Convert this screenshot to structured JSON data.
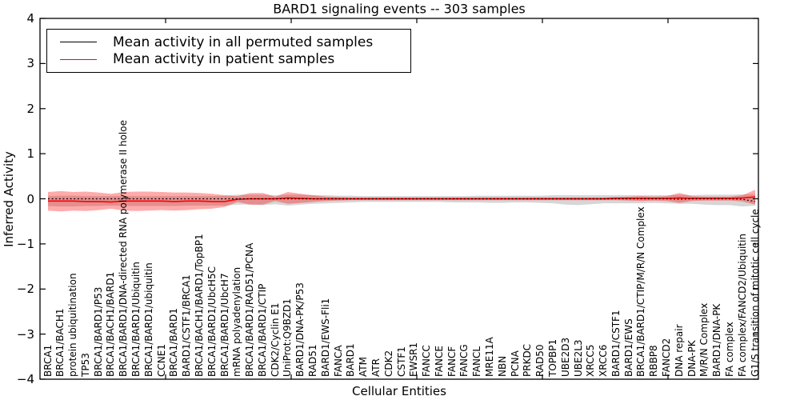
{
  "figure": {
    "background": "#ffffff",
    "frame_color": "#000000"
  },
  "chart_data": {
    "type": "line",
    "title": "BARD1 signaling events -- 303 samples",
    "xlabel": "Cellular Entities",
    "ylabel": "Inferred Activity",
    "ylim": [
      -4,
      4
    ],
    "grid": false,
    "legend_position": "upper left",
    "y_tick_labels": [
      "4",
      "3",
      "2",
      "1",
      "0",
      "−1",
      "−2",
      "−3",
      "−4"
    ],
    "y_tick_values": [
      4,
      3,
      2,
      1,
      0,
      -1,
      -2,
      -3,
      -4
    ],
    "categories": [
      "BRCA1",
      "BRCA1/BACH1",
      "protein ubiquitination",
      "TP53",
      "BRCA1/BARD1/P53",
      "BRCA1/BACH1/BARD1",
      "BRCA1/BARD1/DNA-directed RNA polymerase II holoe",
      "BRCA1/BARD1/Ubiquitin",
      "BRCA1/BARD1/ubiquitin",
      "CCNE1",
      "BRCA1/BARD1",
      "BARD1/CSTF1/BRCA1",
      "BRCA1/BACH1/BARD1/TopBP1",
      "BRCA1/BARD1/UbcH5C",
      "BRCA1/BARD1/UbcH7",
      "mRNA polyadenylation",
      "BRCA1/BARD1/RAD51/PCNA",
      "BRCA1/BARD1/CTIP",
      "CDK2/Cyclin E1",
      "UniProt:Q9BZD1",
      "BARD1/DNA-PK/P53",
      "RAD51",
      "BARD1/EWS-Fli1",
      "FANCA",
      "BARD1",
      "ATM",
      "ATR",
      "CDK2",
      "CSTF1",
      "EWSR1",
      "FANCC",
      "FANCE",
      "FANCF",
      "FANCG",
      "FANCL",
      "MRE11A",
      "NBN",
      "PCNA",
      "PRKDC",
      "RAD50",
      "TOPBP1",
      "UBE2D3",
      "UBE2L3",
      "XRCC5",
      "XRCC6",
      "BARD1/CSTF1",
      "BARD1/EWS",
      "BRCA1/BARD1/CTIP/M/R/N Complex",
      "RBBP8",
      "FANCD2",
      "DNA repair",
      "DNA-PK",
      "M/R/N Complex",
      "BARD1/DNA-PK",
      "FA complex",
      "FA complex/FANCD2/Ubiquitin",
      "G1/S transition of mitotic cell cycle"
    ],
    "series": [
      {
        "name": "Mean activity in all permuted samples",
        "color": "#000000",
        "line_style": "dotted",
        "values": [
          0,
          0,
          0,
          0,
          0,
          0,
          0,
          0,
          0,
          0,
          0,
          0,
          0,
          0,
          0,
          0,
          0,
          0,
          0,
          0,
          0,
          0,
          0,
          0,
          0,
          0,
          0,
          0,
          0,
          0,
          0,
          0,
          0,
          0,
          0,
          0,
          0,
          0,
          0,
          0,
          0,
          0,
          0,
          0,
          0,
          0,
          0,
          0,
          0,
          0,
          -0.01,
          0,
          0,
          0,
          0,
          -0.01,
          -0.06
        ],
        "band": {
          "color": "#7f7f7f",
          "opacity": 0.32,
          "lo": [
            -0.16,
            -0.17,
            -0.17,
            -0.16,
            -0.16,
            -0.15,
            -0.16,
            -0.16,
            -0.16,
            -0.16,
            -0.16,
            -0.15,
            -0.15,
            -0.15,
            -0.15,
            -0.13,
            -0.13,
            -0.14,
            -0.12,
            -0.15,
            -0.13,
            -0.11,
            -0.1,
            -0.09,
            -0.08,
            -0.07,
            -0.07,
            -0.07,
            -0.07,
            -0.07,
            -0.07,
            -0.07,
            -0.08,
            -0.08,
            -0.08,
            -0.09,
            -0.09,
            -0.08,
            -0.08,
            -0.09,
            -0.1,
            -0.13,
            -0.14,
            -0.12,
            -0.1,
            -0.1,
            -0.1,
            -0.1,
            -0.09,
            -0.1,
            -0.11,
            -0.11,
            -0.13,
            -0.14,
            -0.14,
            -0.17,
            -0.15
          ],
          "hi": [
            0.06,
            0.07,
            0.07,
            0.06,
            0.06,
            0.06,
            0.06,
            0.06,
            0.06,
            0.06,
            0.06,
            0.06,
            0.06,
            0.06,
            0.07,
            0.09,
            0.09,
            0.09,
            0.08,
            0.09,
            0.09,
            0.08,
            0.08,
            0.07,
            0.07,
            0.06,
            0.06,
            0.06,
            0.06,
            0.06,
            0.06,
            0.06,
            0.06,
            0.06,
            0.07,
            0.07,
            0.07,
            0.07,
            0.07,
            0.07,
            0.08,
            0.08,
            0.08,
            0.08,
            0.08,
            0.08,
            0.08,
            0.08,
            0.08,
            0.08,
            0.09,
            0.08,
            0.09,
            0.09,
            0.09,
            0.1,
            0.1
          ]
        }
      },
      {
        "name": "Mean activity in patient samples",
        "color": "#ff0000",
        "line_style": "solid",
        "values": [
          -0.05,
          -0.05,
          -0.05,
          -0.06,
          -0.06,
          -0.07,
          -0.05,
          -0.05,
          -0.05,
          -0.05,
          -0.06,
          -0.05,
          -0.05,
          -0.06,
          -0.06,
          -0.01,
          0,
          0,
          0,
          0.02,
          0.01,
          0,
          0,
          0,
          0,
          0,
          0,
          0,
          0,
          0,
          0,
          0,
          0,
          0,
          0,
          0,
          0,
          0,
          0,
          0,
          0,
          0,
          0,
          0,
          0,
          0.01,
          0.01,
          0.01,
          0.01,
          0.01,
          0.02,
          0.01,
          0.01,
          0.01,
          0.01,
          0.02,
          0.04
        ],
        "band": {
          "color": "#ff0000",
          "opacity": 0.33,
          "lo": [
            -0.26,
            -0.28,
            -0.26,
            -0.27,
            -0.25,
            -0.22,
            -0.26,
            -0.27,
            -0.26,
            -0.25,
            -0.26,
            -0.25,
            -0.23,
            -0.22,
            -0.18,
            -0.07,
            -0.13,
            -0.13,
            -0.05,
            -0.11,
            -0.09,
            -0.07,
            -0.05,
            -0.04,
            -0.03,
            -0.03,
            -0.03,
            -0.03,
            -0.03,
            -0.03,
            -0.03,
            -0.03,
            -0.03,
            -0.03,
            -0.03,
            -0.03,
            -0.03,
            -0.03,
            -0.03,
            -0.03,
            -0.03,
            -0.03,
            -0.03,
            -0.03,
            -0.03,
            -0.03,
            -0.04,
            -0.05,
            -0.04,
            -0.05,
            -0.09,
            -0.05,
            -0.04,
            -0.04,
            -0.04,
            -0.06,
            -0.13
          ],
          "hi": [
            0.15,
            0.17,
            0.15,
            0.16,
            0.14,
            0.11,
            0.15,
            0.16,
            0.16,
            0.15,
            0.14,
            0.14,
            0.13,
            0.11,
            0.08,
            0.06,
            0.13,
            0.13,
            0.05,
            0.15,
            0.11,
            0.08,
            0.05,
            0.04,
            0.03,
            0.03,
            0.03,
            0.03,
            0.03,
            0.03,
            0.03,
            0.03,
            0.03,
            0.03,
            0.03,
            0.03,
            0.03,
            0.03,
            0.03,
            0.03,
            0.03,
            0.03,
            0.03,
            0.03,
            0.03,
            0.04,
            0.05,
            0.06,
            0.05,
            0.06,
            0.13,
            0.06,
            0.05,
            0.05,
            0.05,
            0.08,
            0.2
          ]
        }
      }
    ]
  }
}
